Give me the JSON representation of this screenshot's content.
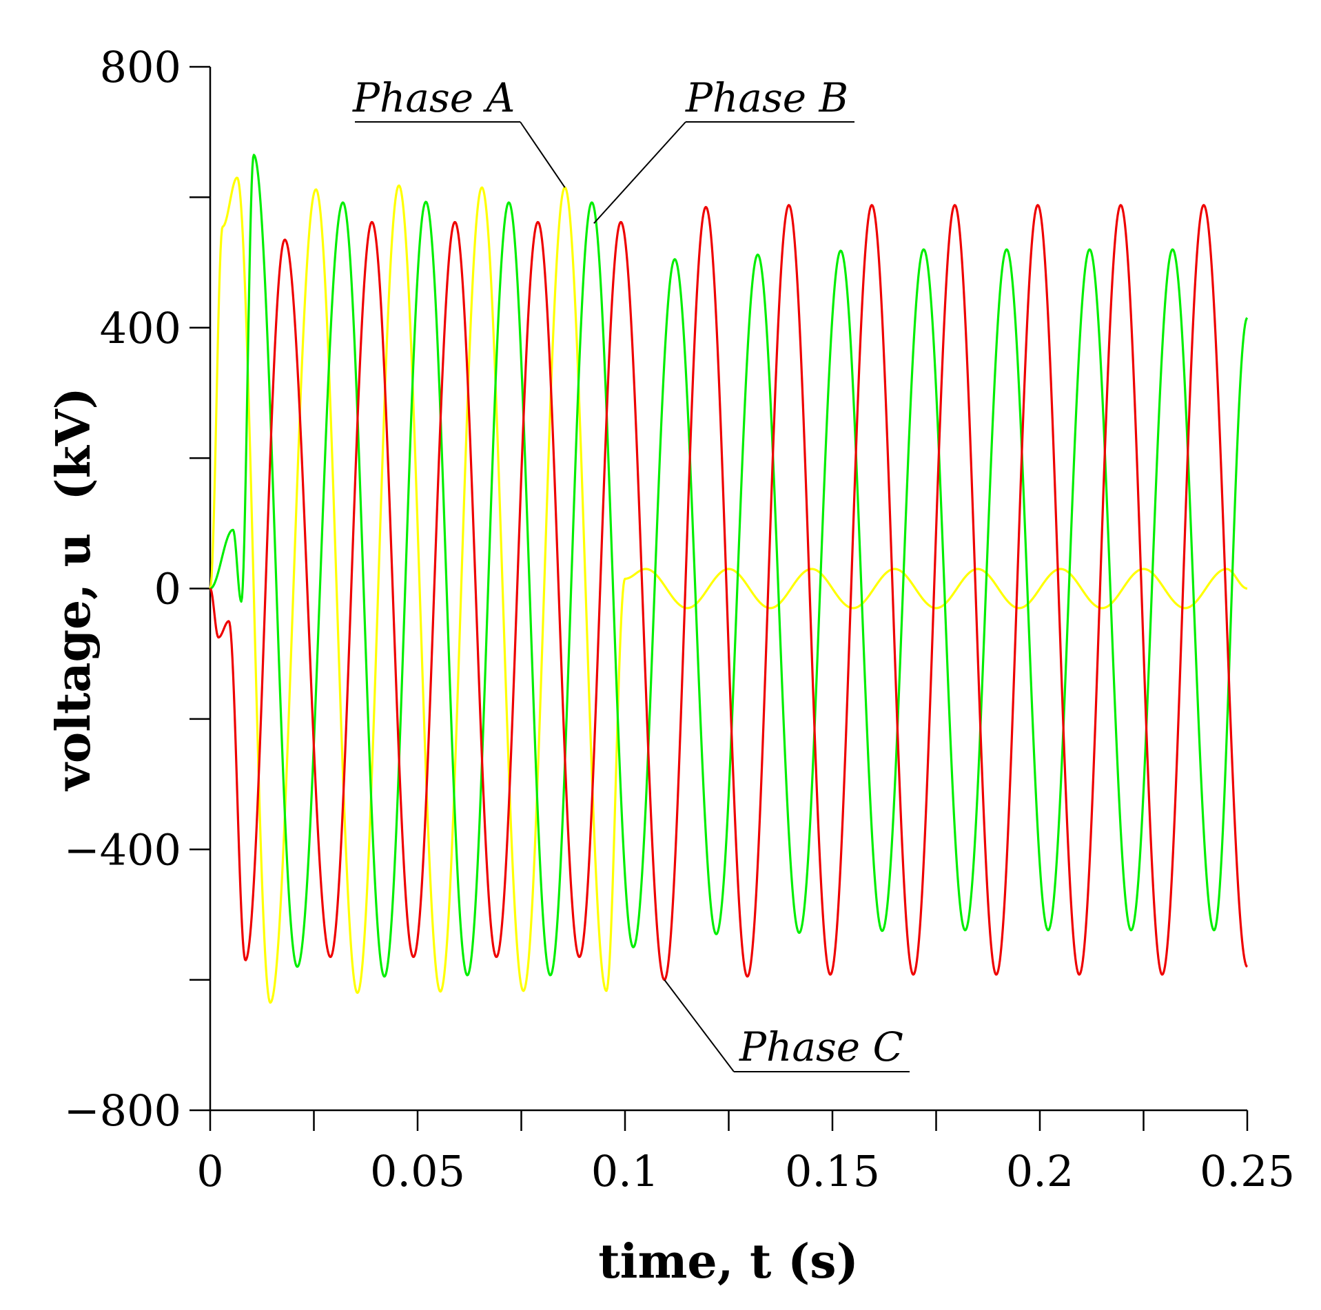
{
  "chart_data": {
    "type": "line",
    "title": "",
    "xlabel": "time, t (s)",
    "ylabel": "voltage, u  (kV)",
    "xlim": [
      0,
      0.25
    ],
    "ylim": [
      -800,
      800
    ],
    "xticks": [
      0,
      0.025,
      0.05,
      0.075,
      0.1,
      0.125,
      0.15,
      0.175,
      0.2,
      0.225,
      0.25
    ],
    "xtick_labels": [
      "0",
      "",
      "0.05",
      "",
      "0.1",
      "",
      "0.15",
      "",
      "0.2",
      "",
      "0.25"
    ],
    "yticks": [
      -800,
      -600,
      -400,
      -200,
      0,
      200,
      400,
      600,
      800
    ],
    "ytick_labels": [
      "−800",
      "",
      "−400",
      "",
      "0",
      "",
      "400",
      "",
      "800"
    ],
    "frequency_hz": 50,
    "fault_clear_time_s": 0.1,
    "series": [
      {
        "name": "Phase A",
        "color": "#ffff00",
        "amplitude_before_kv": 610,
        "amplitude_after_kv": 30,
        "phase_deg": 0,
        "label_anchor": {
          "t": 0.0855,
          "u": 615
        },
        "keypoints": [
          {
            "t": 0.0,
            "u": 0
          },
          {
            "t": 0.003,
            "u": 555
          },
          {
            "t": 0.0065,
            "u": 630
          },
          {
            "t": 0.0145,
            "u": -635
          },
          {
            "t": 0.0255,
            "u": 612
          },
          {
            "t": 0.0355,
            "u": -620
          },
          {
            "t": 0.0455,
            "u": 618
          },
          {
            "t": 0.0555,
            "u": -618
          },
          {
            "t": 0.0655,
            "u": 615
          },
          {
            "t": 0.0755,
            "u": -617
          },
          {
            "t": 0.0855,
            "u": 615
          },
          {
            "t": 0.0955,
            "u": -617
          },
          {
            "t": 0.1,
            "u": 15
          },
          {
            "t": 0.105,
            "u": 30
          },
          {
            "t": 0.115,
            "u": -30
          },
          {
            "t": 0.125,
            "u": 30
          },
          {
            "t": 0.135,
            "u": -30
          },
          {
            "t": 0.145,
            "u": 30
          },
          {
            "t": 0.155,
            "u": -30
          },
          {
            "t": 0.165,
            "u": 30
          },
          {
            "t": 0.175,
            "u": -30
          },
          {
            "t": 0.185,
            "u": 30
          },
          {
            "t": 0.195,
            "u": -30
          },
          {
            "t": 0.205,
            "u": 30
          },
          {
            "t": 0.215,
            "u": -30
          },
          {
            "t": 0.225,
            "u": 30
          },
          {
            "t": 0.235,
            "u": -30
          },
          {
            "t": 0.245,
            "u": 30
          },
          {
            "t": 0.25,
            "u": 0
          }
        ]
      },
      {
        "name": "Phase B",
        "color": "#00ee00",
        "amplitude_before_kv": 590,
        "amplitude_after_kv": 520,
        "phase_deg": 240,
        "label_anchor": {
          "t": 0.0925,
          "u": 560
        },
        "keypoints": [
          {
            "t": 0.0,
            "u": 0
          },
          {
            "t": 0.0055,
            "u": 90
          },
          {
            "t": 0.0075,
            "u": -20
          },
          {
            "t": 0.0105,
            "u": 665
          },
          {
            "t": 0.021,
            "u": -580
          },
          {
            "t": 0.032,
            "u": 592
          },
          {
            "t": 0.042,
            "u": -595
          },
          {
            "t": 0.052,
            "u": 593
          },
          {
            "t": 0.062,
            "u": -593
          },
          {
            "t": 0.072,
            "u": 592
          },
          {
            "t": 0.082,
            "u": -593
          },
          {
            "t": 0.092,
            "u": 592
          },
          {
            "t": 0.102,
            "u": -550
          },
          {
            "t": 0.112,
            "u": 505
          },
          {
            "t": 0.122,
            "u": -530
          },
          {
            "t": 0.132,
            "u": 512
          },
          {
            "t": 0.142,
            "u": -528
          },
          {
            "t": 0.152,
            "u": 518
          },
          {
            "t": 0.162,
            "u": -525
          },
          {
            "t": 0.172,
            "u": 520
          },
          {
            "t": 0.182,
            "u": -524
          },
          {
            "t": 0.192,
            "u": 520
          },
          {
            "t": 0.202,
            "u": -524
          },
          {
            "t": 0.212,
            "u": 520
          },
          {
            "t": 0.222,
            "u": -524
          },
          {
            "t": 0.232,
            "u": 520
          },
          {
            "t": 0.242,
            "u": -524
          },
          {
            "t": 0.25,
            "u": 415
          }
        ]
      },
      {
        "name": "Phase C",
        "color": "#ee0000",
        "amplitude_before_kv": 565,
        "amplitude_after_kv": 590,
        "phase_deg": 120,
        "label_anchor": {
          "t": 0.1095,
          "u": -600
        },
        "keypoints": [
          {
            "t": 0.0,
            "u": 0
          },
          {
            "t": 0.002,
            "u": -75
          },
          {
            "t": 0.0045,
            "u": -50
          },
          {
            "t": 0.0085,
            "u": -570
          },
          {
            "t": 0.018,
            "u": 535
          },
          {
            "t": 0.029,
            "u": -565
          },
          {
            "t": 0.039,
            "u": 562
          },
          {
            "t": 0.049,
            "u": -565
          },
          {
            "t": 0.059,
            "u": 562
          },
          {
            "t": 0.069,
            "u": -565
          },
          {
            "t": 0.079,
            "u": 562
          },
          {
            "t": 0.089,
            "u": -565
          },
          {
            "t": 0.099,
            "u": 562
          },
          {
            "t": 0.1095,
            "u": -600
          },
          {
            "t": 0.1195,
            "u": 585
          },
          {
            "t": 0.1295,
            "u": -595
          },
          {
            "t": 0.1395,
            "u": 588
          },
          {
            "t": 0.1495,
            "u": -592
          },
          {
            "t": 0.1595,
            "u": 588
          },
          {
            "t": 0.1695,
            "u": -592
          },
          {
            "t": 0.1795,
            "u": 588
          },
          {
            "t": 0.1895,
            "u": -592
          },
          {
            "t": 0.1995,
            "u": 588
          },
          {
            "t": 0.2095,
            "u": -592
          },
          {
            "t": 0.2195,
            "u": 588
          },
          {
            "t": 0.2295,
            "u": -592
          },
          {
            "t": 0.2395,
            "u": 588
          },
          {
            "t": 0.25,
            "u": -580
          }
        ]
      }
    ]
  }
}
